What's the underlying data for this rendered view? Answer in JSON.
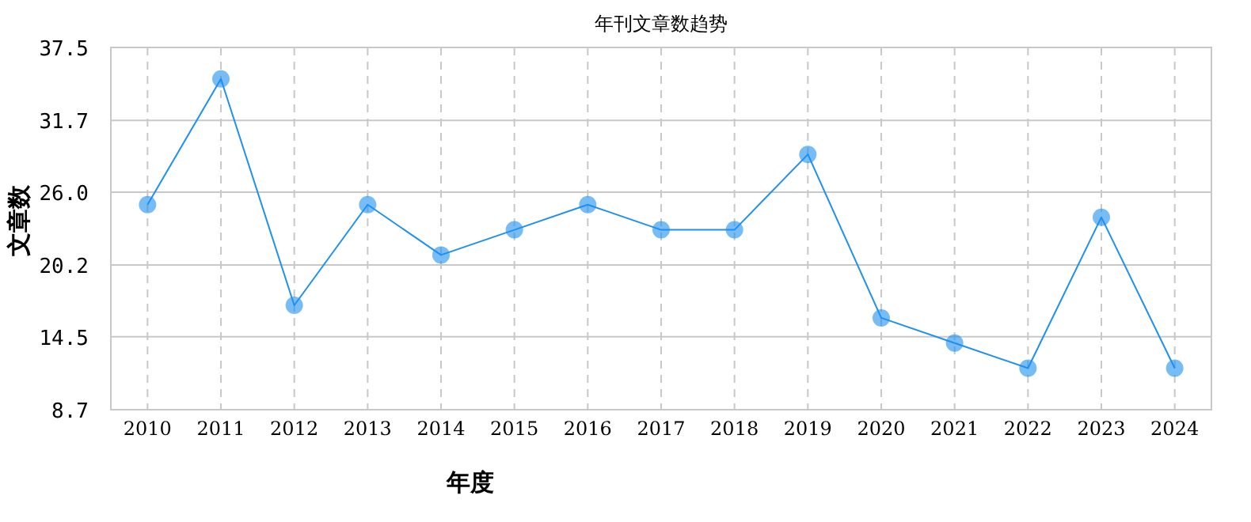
{
  "chart_data": {
    "type": "line",
    "title": "年刊文章数趋势",
    "xlabel": "年度",
    "ylabel": "文章数",
    "categories": [
      "2010",
      "2011",
      "2012",
      "2013",
      "2014",
      "2015",
      "2016",
      "2017",
      "2018",
      "2019",
      "2020",
      "2021",
      "2022",
      "2023",
      "2024"
    ],
    "series": [
      {
        "color": "#1e90f0",
        "values": [
          25,
          35,
          17,
          25,
          21,
          23,
          25,
          23,
          23,
          29,
          16,
          14,
          12,
          24,
          12
        ]
      }
    ],
    "ylim": [
      8.7,
      37.5
    ],
    "yticks": [
      8.7,
      14.5,
      20.2,
      {
        "value": 26,
        "label": "26.0"
      },
      31.7,
      37.5
    ],
    "grid": true,
    "marker": "circle",
    "line_style": "solid"
  }
}
